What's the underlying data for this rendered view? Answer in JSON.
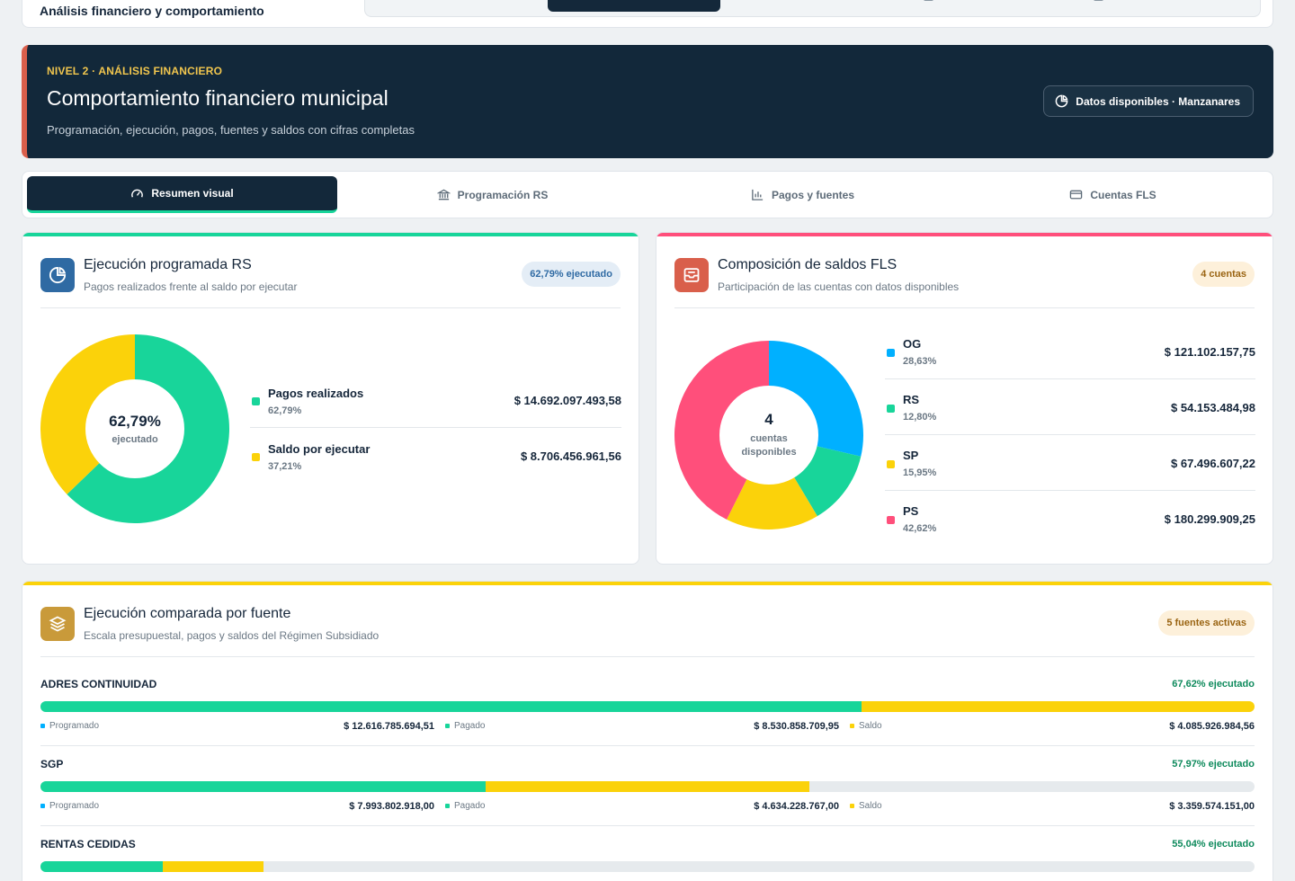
{
  "top": {
    "title": "Análisis financiero y comportamiento"
  },
  "hero": {
    "kicker": "NIVEL 2 · ANÁLISIS FINANCIERO",
    "title": "Comportamiento financiero municipal",
    "subtitle": "Programación, ejecución, pagos, fuentes y saldos con cifras completas",
    "pill": "Datos disponibles · Manzanares"
  },
  "tabs": [
    {
      "label": "Resumen visual",
      "icon": "gauge-icon",
      "active": true
    },
    {
      "label": "Programación RS",
      "icon": "bank-icon",
      "active": false
    },
    {
      "label": "Pagos y fuentes",
      "icon": "bar-chart-icon",
      "active": false
    },
    {
      "label": "Cuentas FLS",
      "icon": "credit-card-icon",
      "active": false
    }
  ],
  "colors": {
    "green": "#18d59a",
    "yellow": "#fbd20a",
    "blue": "#00b0ff",
    "pink": "#ff4f7b",
    "navy": "#12283a",
    "accent_red": "#d95f4b"
  },
  "rs_card": {
    "title": "Ejecución programada RS",
    "subtitle": "Pagos realizados frente al saldo por ejecutar",
    "badge": "62,79% ejecutado",
    "center_value": "62,79%",
    "center_label": "ejecutado",
    "items": [
      {
        "name": "Pagos realizados",
        "pct": "62,79%",
        "value": "$ 14.692.097.493,58",
        "share": 62.79,
        "color": "#18d59a"
      },
      {
        "name": "Saldo por ejecutar",
        "pct": "37,21%",
        "value": "$ 8.706.456.961,56",
        "share": 37.21,
        "color": "#fbd20a"
      }
    ]
  },
  "fls_card": {
    "title": "Composición de saldos FLS",
    "subtitle": "Participación de las cuentas con datos disponibles",
    "badge": "4 cuentas",
    "center_value": "4",
    "center_label": "cuentas disponibles",
    "items": [
      {
        "name": "OG",
        "pct": "28,63%",
        "value": "$ 121.102.157,75",
        "share": 28.63,
        "color": "#00b0ff"
      },
      {
        "name": "RS",
        "pct": "12,80%",
        "value": "$ 54.153.484,98",
        "share": 12.8,
        "color": "#18d59a"
      },
      {
        "name": "SP",
        "pct": "15,95%",
        "value": "$ 67.496.607,22",
        "share": 15.95,
        "color": "#fbd20a"
      },
      {
        "name": "PS",
        "pct": "42,62%",
        "value": "$ 180.299.909,25",
        "share": 42.62,
        "color": "#ff4f7b"
      }
    ]
  },
  "fuente_card": {
    "title": "Ejecución comparada por fuente",
    "subtitle": "Escala presupuestal, pagos y saldos del Régimen Subsidiado",
    "badge": "5 fuentes activas",
    "labels": {
      "programado": "Programado",
      "pagado": "Pagado",
      "saldo": "Saldo"
    },
    "rows": [
      {
        "name": "ADRES CONTINUIDAD",
        "exec": "67,62% ejecutado",
        "programado": "$ 12.616.785.694,51",
        "pagado": "$ 8.530.858.709,95",
        "saldo": "$ 4.085.926.984,56",
        "pagado_share": 67.62,
        "saldo_share": 32.38
      },
      {
        "name": "SGP",
        "exec": "57,97% ejecutado",
        "programado": "$ 7.993.802.918,00",
        "pagado": "$ 4.634.228.767,00",
        "saldo": "$ 3.359.574.151,00",
        "pagado_share": 36.7,
        "saldo_share": 26.6
      },
      {
        "name": "RENTAS CEDIDAS",
        "exec": "55,04% ejecutado",
        "programado": "",
        "pagado": "",
        "saldo": "",
        "pagado_share": 10.1,
        "saldo_share": 8.3
      }
    ]
  }
}
